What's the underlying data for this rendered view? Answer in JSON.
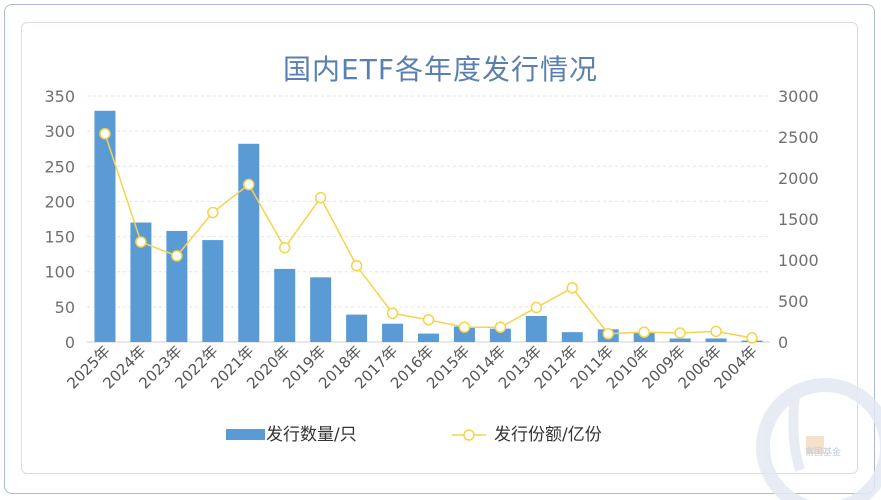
{
  "chart_data": {
    "type": "bar",
    "title": "国内ETF各年度发行情况",
    "categories": [
      "2025年",
      "2024年",
      "2023年",
      "2022年",
      "2021年",
      "2020年",
      "2019年",
      "2018年",
      "2017年",
      "2016年",
      "2015年",
      "2014年",
      "2013年",
      "2012年",
      "2011年",
      "2010年",
      "2009年",
      "2006年",
      "2004年"
    ],
    "series": [
      {
        "name": "发行数量/只",
        "type": "bar",
        "axis": "left",
        "color": "#5b9bd5",
        "values": [
          329,
          170,
          158,
          145,
          282,
          104,
          92,
          39,
          26,
          12,
          22,
          19,
          37,
          14,
          18,
          13,
          5,
          5,
          2
        ]
      },
      {
        "name": "发行份额/亿份",
        "type": "line",
        "axis": "right",
        "color": "#f5d44a",
        "values": [
          2540,
          1220,
          1050,
          1580,
          1920,
          1150,
          1760,
          930,
          350,
          270,
          180,
          180,
          420,
          660,
          100,
          120,
          110,
          130,
          50
        ]
      }
    ],
    "y_left": {
      "min": 0,
      "max": 350,
      "ticks": [
        "0",
        "50",
        "100",
        "150",
        "200",
        "250",
        "300",
        "350"
      ]
    },
    "y_right": {
      "min": 0,
      "max": 3000,
      "ticks": [
        "0",
        "500",
        "1000",
        "1500",
        "2000",
        "2500",
        "3000"
      ]
    },
    "grid": true,
    "legend_position": "bottom"
  },
  "watermark": {
    "text": "富国基金"
  }
}
